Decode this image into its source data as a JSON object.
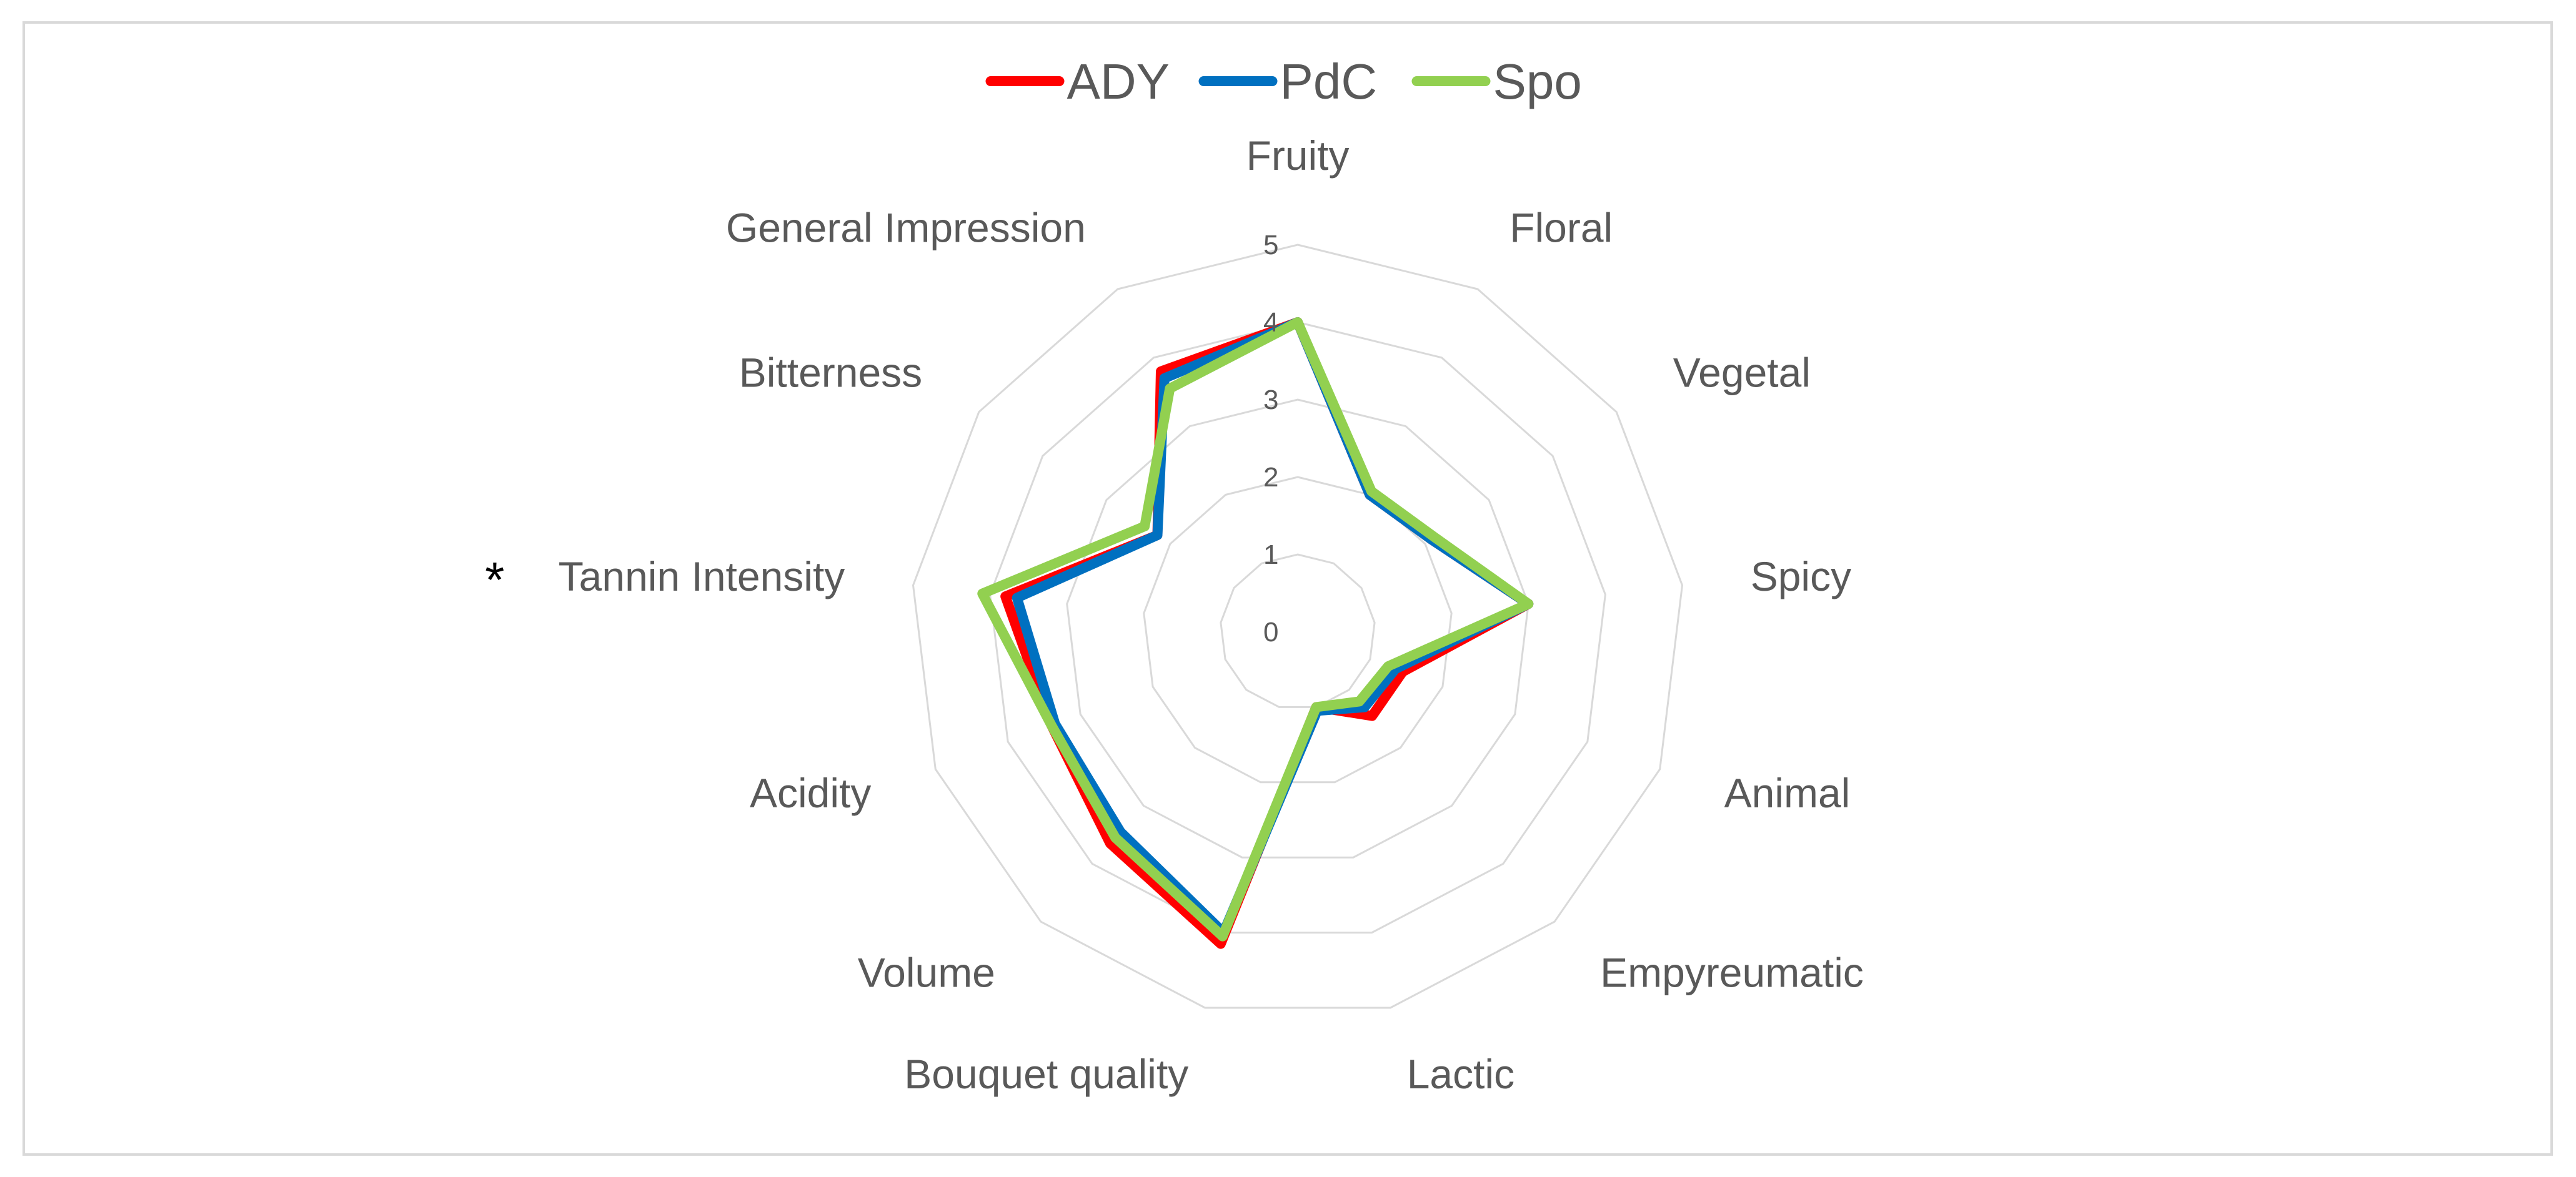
{
  "chart_data": {
    "type": "radar",
    "categories": [
      "Fruity",
      "Floral",
      "Vegetal",
      "Spicy",
      "Animal",
      "Empyreumatic",
      "Lactic",
      "Bouquet quality",
      "Volume",
      "Acidity",
      "Tannin Intensity",
      "Bitterness",
      "General Impression"
    ],
    "category_marks": {
      "Tannin Intensity": "*"
    },
    "rlim": [
      0,
      5
    ],
    "ticks": [
      "0",
      "1",
      "2",
      "3",
      "4",
      "5"
    ],
    "grid": true,
    "legend_position": "top",
    "series": [
      {
        "name": "ADY",
        "color": "#ff0000",
        "values": [
          4.0,
          2.0,
          2.1,
          3.0,
          1.45,
          1.45,
          1.0,
          4.15,
          3.65,
          3.4,
          3.8,
          2.2,
          3.8
        ]
      },
      {
        "name": "PdC",
        "color": "#0070c0",
        "values": [
          4.0,
          2.0,
          2.1,
          3.0,
          1.35,
          1.3,
          1.05,
          4.0,
          3.45,
          3.35,
          3.65,
          2.2,
          3.7
        ]
      },
      {
        "name": "Spo",
        "color": "#92d050",
        "values": [
          4.0,
          2.05,
          2.15,
          3.0,
          1.25,
          1.2,
          1.0,
          4.05,
          3.55,
          3.4,
          4.1,
          2.4,
          3.55
        ]
      }
    ]
  }
}
